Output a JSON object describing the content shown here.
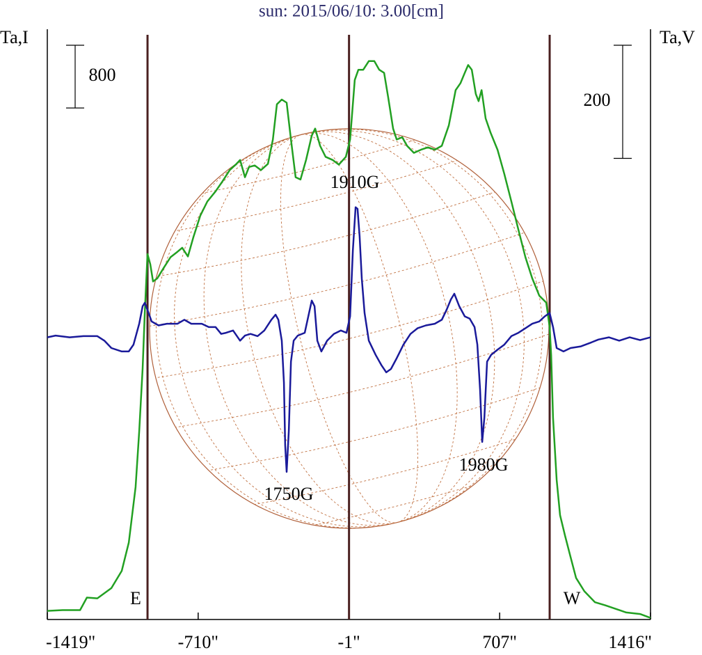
{
  "chart_data": {
    "type": "line",
    "title": "sun: 2015/06/10: 3.00[cm]",
    "y_label": "Ta,I",
    "y2_label": "Ta,V",
    "xlim": [
      -1419,
      1416
    ],
    "xticks": [
      {
        "value": -1419,
        "label": "-1419\""
      },
      {
        "value": -710,
        "label": "-710\""
      },
      {
        "value": -1,
        "label": "-1\""
      },
      {
        "value": 707,
        "label": "707\""
      },
      {
        "value": 1416,
        "label": "1416\""
      }
    ],
    "ylim": [
      0,
      7500
    ],
    "y2lim": [
      -500,
      540
    ],
    "i_scale_bar": 800,
    "v_scale_bar": 200,
    "vertical_lines": [
      -948,
      -1,
      942
    ],
    "limb_labels": [
      "E",
      "W"
    ],
    "peak_labels": [
      "1910G",
      "1750G",
      "1980G"
    ],
    "series": [
      {
        "name": "I",
        "color": "#22a022",
        "x": [
          -1419,
          -1347,
          -1265,
          -1233,
          -1184,
          -1118,
          -1069,
          -1036,
          -1004,
          -987,
          -971,
          -961,
          -948,
          -935,
          -922,
          -902,
          -873,
          -840,
          -807,
          -785,
          -758,
          -732,
          -700,
          -667,
          -628,
          -595,
          -562,
          -530,
          -513,
          -490,
          -471,
          -444,
          -415,
          -382,
          -359,
          -340,
          -317,
          -294,
          -274,
          -252,
          -229,
          -203,
          -176,
          -160,
          -137,
          -111,
          -78,
          -49,
          -16,
          4,
          26,
          43,
          66,
          92,
          118,
          141,
          164,
          183,
          206,
          223,
          249,
          272,
          304,
          337,
          370,
          402,
          435,
          468,
          500,
          523,
          543,
          559,
          576,
          595,
          608,
          622,
          641,
          664,
          697,
          729,
          762,
          795,
          828,
          860,
          893,
          926,
          942,
          949,
          958,
          975,
          991,
          1014,
          1040,
          1066,
          1105,
          1155,
          1204,
          1302,
          1367,
          1416
        ],
        "values": [
          110,
          120,
          120,
          280,
          270,
          400,
          620,
          980,
          1690,
          2400,
          3200,
          3910,
          4660,
          4530,
          4310,
          4350,
          4480,
          4620,
          4690,
          4740,
          4630,
          4880,
          5150,
          5330,
          5460,
          5590,
          5730,
          5810,
          5860,
          5640,
          5770,
          5790,
          5730,
          5810,
          6120,
          6570,
          6630,
          6590,
          6120,
          5640,
          5610,
          5860,
          6170,
          6260,
          6040,
          5900,
          5860,
          5800,
          5900,
          6120,
          6880,
          7010,
          7010,
          7120,
          7120,
          7010,
          6970,
          6660,
          6260,
          6120,
          6150,
          6040,
          5950,
          5990,
          6020,
          5990,
          6040,
          6300,
          6750,
          6840,
          6970,
          7070,
          7010,
          6700,
          6610,
          6750,
          6390,
          6210,
          5990,
          5680,
          5330,
          4970,
          4620,
          4350,
          4130,
          4040,
          3730,
          3370,
          2570,
          1780,
          1330,
          1070,
          800,
          530,
          360,
          220,
          180,
          90,
          70,
          20
        ]
      },
      {
        "name": "V",
        "color": "#1a1a9a",
        "axis": "y2",
        "x": [
          -1419,
          -1380,
          -1314,
          -1249,
          -1184,
          -1151,
          -1118,
          -1069,
          -1036,
          -1014,
          -987,
          -971,
          -961,
          -945,
          -929,
          -896,
          -857,
          -807,
          -775,
          -742,
          -693,
          -660,
          -628,
          -602,
          -579,
          -546,
          -513,
          -490,
          -464,
          -431,
          -399,
          -366,
          -346,
          -333,
          -317,
          -307,
          -301,
          -294,
          -284,
          -274,
          -261,
          -242,
          -209,
          -189,
          -176,
          -163,
          -150,
          -131,
          -104,
          -72,
          -39,
          -13,
          4,
          17,
          30,
          39,
          49,
          59,
          72,
          92,
          124,
          151,
          174,
          196,
          223,
          255,
          288,
          321,
          360,
          402,
          435,
          458,
          478,
          494,
          517,
          543,
          566,
          589,
          602,
          615,
          625,
          635,
          648,
          667,
          697,
          729,
          762,
          795,
          828,
          860,
          893,
          919,
          942,
          958,
          975,
          1007,
          1040,
          1089,
          1138,
          1171,
          1220,
          1269,
          1318,
          1367,
          1416
        ],
        "values": [
          -1,
          2,
          -1,
          1,
          1,
          -7,
          -20,
          -26,
          -26,
          -14,
          23,
          54,
          60,
          44,
          27,
          20,
          23,
          23,
          30,
          23,
          23,
          17,
          17,
          5,
          7,
          11,
          -7,
          2,
          5,
          1,
          11,
          30,
          39,
          30,
          -7,
          -81,
          -192,
          -239,
          -167,
          -44,
          -7,
          2,
          7,
          42,
          64,
          54,
          -7,
          -26,
          -7,
          5,
          11,
          7,
          36,
          153,
          229,
          226,
          177,
          103,
          42,
          -7,
          -32,
          -50,
          -63,
          -57,
          -38,
          -14,
          5,
          15,
          20,
          23,
          30,
          48,
          66,
          76,
          54,
          36,
          32,
          17,
          -14,
          -93,
          -186,
          -143,
          -44,
          -32,
          -23,
          -14,
          1,
          7,
          15,
          23,
          27,
          36,
          42,
          17,
          -20,
          -26,
          -20,
          -17,
          -10,
          -5,
          -1,
          -7,
          -1,
          -6,
          -1
        ]
      }
    ]
  }
}
